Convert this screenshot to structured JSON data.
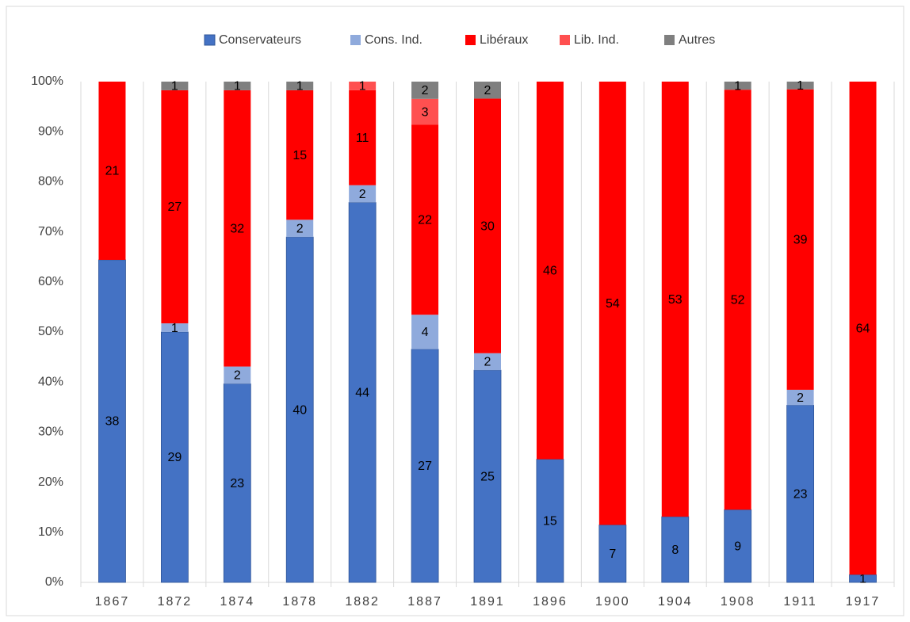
{
  "chart_data": {
    "type": "bar",
    "stacking": "percent",
    "categories": [
      "1867",
      "1872",
      "1874",
      "1878",
      "1882",
      "1887",
      "1891",
      "1896",
      "1900",
      "1904",
      "1908",
      "1911",
      "1917"
    ],
    "series": [
      {
        "name": "Conservateurs",
        "color": "#4472c4",
        "values": [
          38,
          29,
          23,
          40,
          44,
          27,
          25,
          15,
          7,
          8,
          9,
          23,
          1
        ]
      },
      {
        "name": "Cons. Ind.",
        "color": "#8faadc",
        "values": [
          0,
          1,
          2,
          2,
          2,
          4,
          2,
          0,
          0,
          0,
          0,
          2,
          0
        ]
      },
      {
        "name": "Libéraux",
        "color": "#ff0000",
        "values": [
          21,
          27,
          32,
          15,
          11,
          22,
          30,
          46,
          54,
          53,
          52,
          39,
          64
        ]
      },
      {
        "name": "Lib. Ind.",
        "color": "#ff5050",
        "values": [
          0,
          0,
          0,
          0,
          1,
          3,
          0,
          0,
          0,
          0,
          0,
          0,
          0
        ]
      },
      {
        "name": "Autres",
        "color": "#7f7f7f",
        "values": [
          0,
          1,
          1,
          1,
          0,
          2,
          2,
          0,
          0,
          0,
          1,
          1,
          0
        ]
      }
    ],
    "ylim": [
      0,
      100
    ],
    "yticks": [
      {
        "value": 0,
        "label": "0%"
      },
      {
        "value": 10,
        "label": "10%"
      },
      {
        "value": 20,
        "label": "20%"
      },
      {
        "value": 30,
        "label": "30%"
      },
      {
        "value": 40,
        "label": "40%"
      },
      {
        "value": 50,
        "label": "50%"
      },
      {
        "value": 60,
        "label": "60%"
      },
      {
        "value": 70,
        "label": "70%"
      },
      {
        "value": 80,
        "label": "80%"
      },
      {
        "value": 90,
        "label": "90%"
      },
      {
        "value": 100,
        "label": "100%"
      }
    ],
    "legend": "top"
  }
}
